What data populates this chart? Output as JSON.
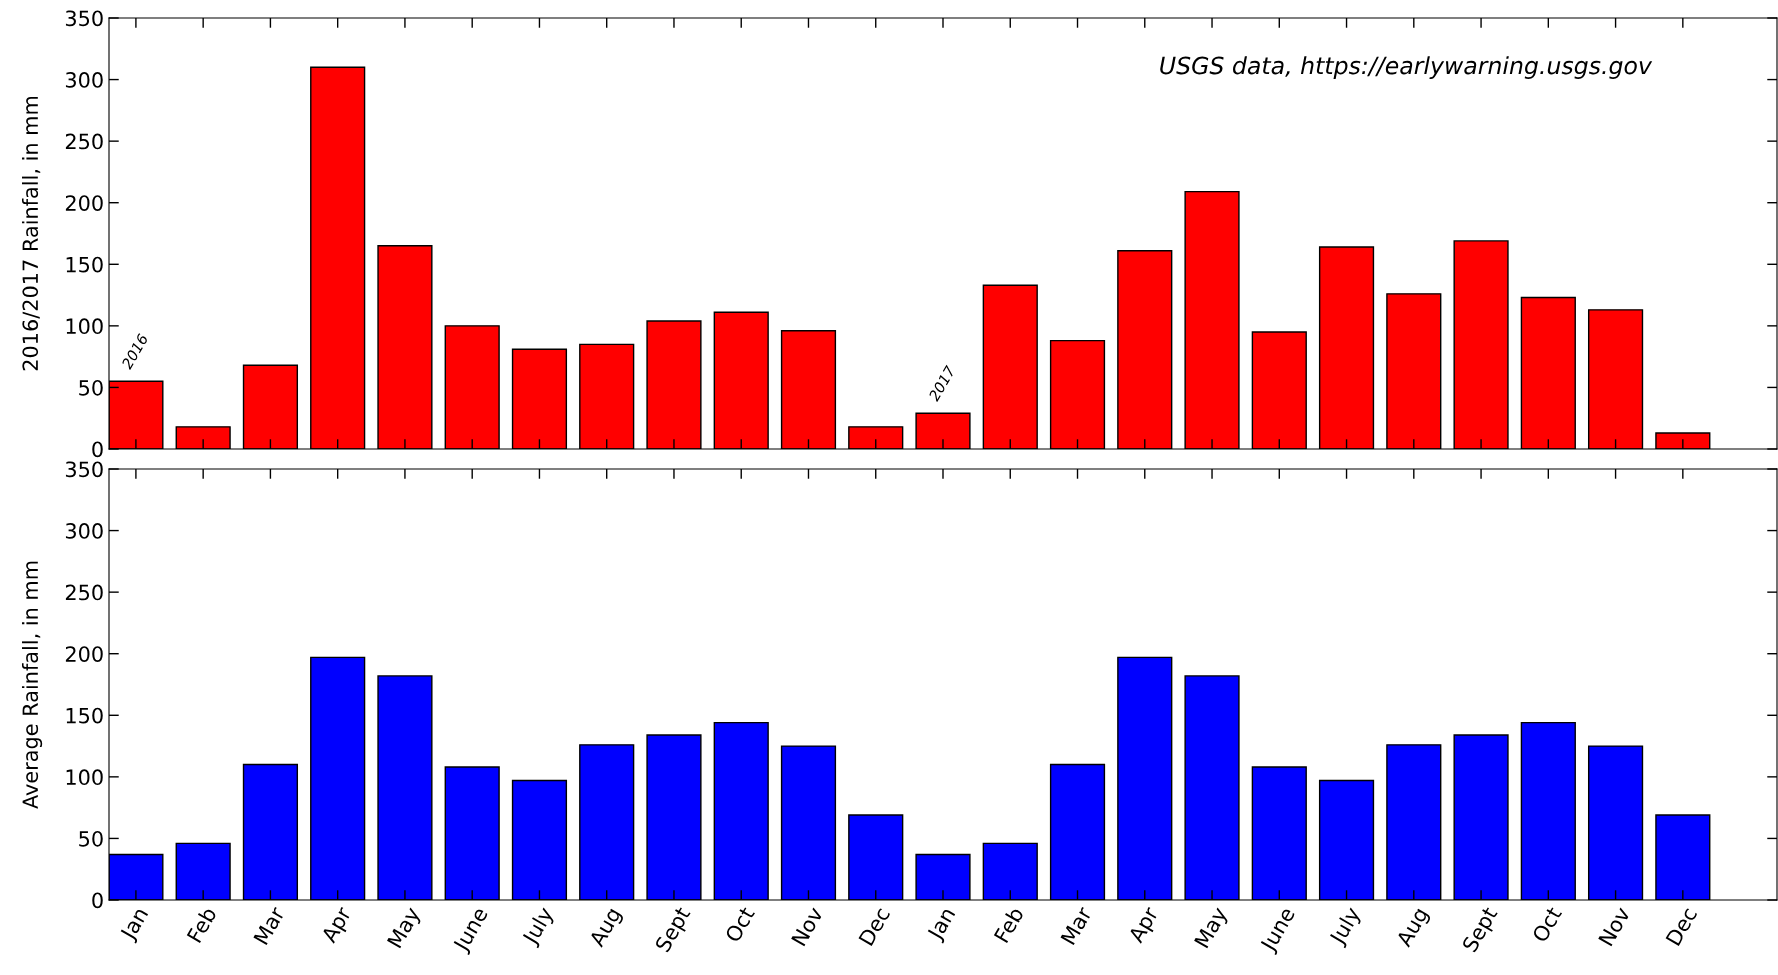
{
  "chart_data": [
    {
      "type": "bar",
      "categories": [
        "Jan",
        "Feb",
        "Mar",
        "Apr",
        "May",
        "June",
        "July",
        "Aug",
        "Sept",
        "Oct",
        "Nov",
        "Dec",
        "Jan",
        "Feb",
        "Mar",
        "Apr",
        "May",
        "June",
        "July",
        "Aug",
        "Sept",
        "Oct",
        "Nov",
        "Dec"
      ],
      "values": [
        55,
        18,
        68,
        310,
        165,
        100,
        81,
        85,
        104,
        111,
        96,
        18,
        29,
        133,
        88,
        161,
        209,
        95,
        164,
        126,
        169,
        123,
        113,
        13
      ],
      "color": "#ff0000",
      "ylim": [
        0,
        350
      ],
      "yticks": [
        0,
        50,
        100,
        150,
        200,
        250,
        300,
        350
      ],
      "ylabel": "2016/2017 Rainfall, in mm",
      "tick_labels": "y",
      "grid": false,
      "annotations": [
        {
          "text": "2016",
          "x": "Jan",
          "y": 55
        },
        "2017",
        "USGS data, https://earlywarning.usgs.gov"
      ]
    },
    {
      "type": "bar",
      "categories": [
        "Jan",
        "Feb",
        "Mar",
        "Apr",
        "May",
        "June",
        "July",
        "Aug",
        "Sept",
        "Oct",
        "Nov",
        "Dec",
        "Jan",
        "Feb",
        "Mar",
        "Apr",
        "May",
        "June",
        "July",
        "Aug",
        "Sept",
        "Oct",
        "Nov",
        "Dec"
      ],
      "values": [
        37,
        46,
        110,
        197,
        182,
        108,
        97,
        126,
        134,
        144,
        125,
        69,
        37,
        46,
        110,
        197,
        182,
        108,
        97,
        126,
        134,
        144,
        125,
        69
      ],
      "color": "#0000ff",
      "ylim": [
        0,
        350
      ],
      "yticks": [
        0,
        50,
        100,
        150,
        200,
        250,
        300,
        350
      ],
      "ylabel": "Average Rainfall, in mm",
      "grid": false
    }
  ]
}
